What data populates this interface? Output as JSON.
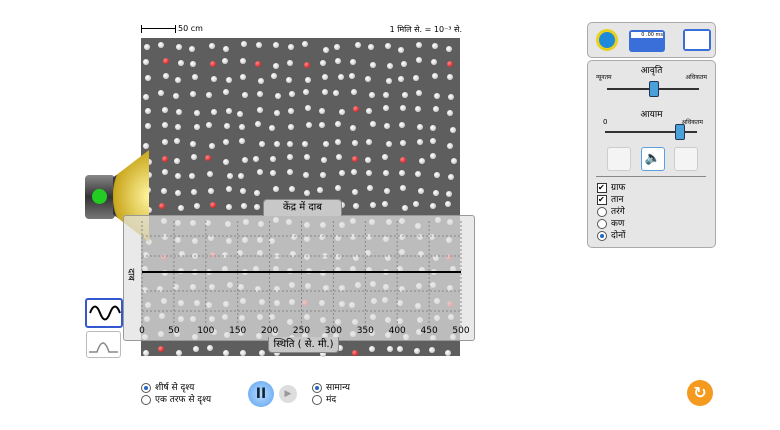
{
  "scale": {
    "label": "50 cm",
    "time_label": "1 मिलि से. = 10⁻³ से."
  },
  "graph": {
    "title": "केंद्र में दाब",
    "ylabel": "दाब",
    "xlabel": "स्थिति ( से. मी.)",
    "xticks": [
      "0",
      "50",
      "100",
      "150",
      "200",
      "250",
      "300",
      "350",
      "400",
      "450",
      "500"
    ]
  },
  "tools": {
    "tape": "measuring-tape-icon",
    "stopwatch": "0 .00 ms",
    "probe": "wave-probe-icon"
  },
  "frequency": {
    "label": "आवृति",
    "min": "न्यूनतम",
    "max": "अधिकतम",
    "value": 0.5
  },
  "amplitude": {
    "label": "आयाम",
    "min": "0",
    "max": "अधिकतम",
    "value": 0.8
  },
  "options": {
    "graph": "ग्राफ",
    "tone": "तान",
    "waves": "तरंगे",
    "particles": "कण",
    "both": "दोनों",
    "graph_checked": true,
    "tone_checked": true,
    "selected": "both"
  },
  "view": {
    "top": "शीर्ष से दृश्य",
    "side": "एक तरफ से दृश्य",
    "selected": "top"
  },
  "speed": {
    "normal": "सामान्य",
    "slow": "मंद",
    "selected": "normal"
  },
  "colors": {
    "accent": "#2466c8",
    "reset": "#f39a1f"
  }
}
